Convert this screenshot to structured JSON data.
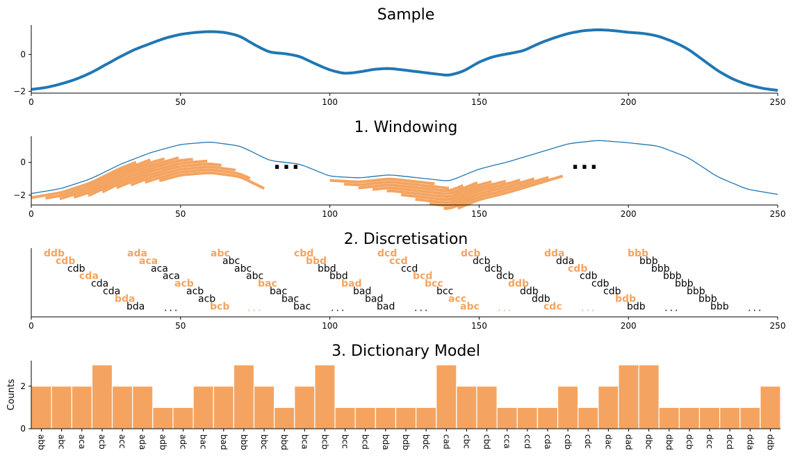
{
  "colors": {
    "sample_line": "#1f77b4",
    "accent": "#f4a460",
    "axis": "#000000",
    "text": "#000000",
    "bar_edge": "#ffffff"
  },
  "chart_data": [
    {
      "type": "line",
      "title": "Sample",
      "xlim": [
        0,
        250
      ],
      "ylim": [
        -2.1,
        1.6
      ],
      "xticks": [
        "0",
        "50",
        "100",
        "150",
        "200",
        "250"
      ],
      "yticks": [
        "−2",
        "0"
      ],
      "series": [
        {
          "x": [
            0,
            5,
            10,
            15,
            20,
            25,
            30,
            35,
            40,
            45,
            50,
            55,
            60,
            65,
            70,
            75,
            80,
            85,
            90,
            95,
            100,
            105,
            110,
            115,
            120,
            125,
            130,
            135,
            140,
            145,
            150,
            155,
            160,
            165,
            170,
            175,
            180,
            185,
            190,
            195,
            200,
            205,
            210,
            215,
            220,
            225,
            230,
            235,
            240,
            245,
            250
          ],
          "y": [
            -1.9,
            -1.8,
            -1.6,
            -1.35,
            -1.0,
            -0.55,
            -0.1,
            0.3,
            0.6,
            0.9,
            1.1,
            1.2,
            1.25,
            1.2,
            1.0,
            0.5,
            0.1,
            0.05,
            -0.1,
            -0.5,
            -0.85,
            -1.05,
            -0.95,
            -0.8,
            -0.75,
            -0.85,
            -0.95,
            -1.05,
            -1.15,
            -0.9,
            -0.4,
            -0.1,
            0.05,
            0.2,
            0.6,
            0.9,
            1.15,
            1.3,
            1.35,
            1.3,
            1.2,
            1.15,
            1.0,
            0.7,
            0.3,
            -0.3,
            -0.9,
            -1.35,
            -1.65,
            -1.85,
            -1.95
          ]
        }
      ]
    },
    {
      "type": "line",
      "title": "1. Windowing",
      "xlim": [
        0,
        250
      ],
      "ylim": [
        -2.6,
        1.6
      ],
      "xticks": [
        "0",
        "50",
        "100",
        "150",
        "200",
        "250"
      ],
      "yticks": [
        "−2",
        "0"
      ],
      "series": [
        {
          "x": [
            0,
            10,
            20,
            30,
            40,
            50,
            60,
            70,
            80,
            90,
            100,
            110,
            120,
            130,
            140,
            150,
            160,
            170,
            180,
            190,
            200,
            210,
            220,
            230,
            240,
            250
          ],
          "y": [
            -1.9,
            -1.6,
            -1.0,
            -0.1,
            0.6,
            1.1,
            1.25,
            1.0,
            0.1,
            -0.1,
            -0.85,
            -0.95,
            -0.75,
            -0.95,
            -1.15,
            -0.4,
            0.05,
            0.6,
            1.15,
            1.35,
            1.2,
            1.0,
            0.3,
            -0.9,
            -1.65,
            -1.95
          ]
        }
      ],
      "window_groups": [
        {
          "start": 0,
          "end": 78,
          "windows": 10
        },
        {
          "start": 100,
          "end": 178,
          "windows": 10
        }
      ],
      "annotations": [
        "...",
        "..."
      ]
    },
    {
      "type": "table",
      "title": "2. Discretisation",
      "xlim": [
        0,
        250
      ],
      "xticks": [
        "0",
        "50",
        "100",
        "150",
        "200",
        "250"
      ],
      "columns": [
        {
          "words": [
            "ddb",
            "cdb",
            "cdb",
            "cda",
            "cda",
            "cda",
            "bda",
            "bda"
          ],
          "highlight": [
            true,
            true,
            false,
            true,
            false,
            false,
            true,
            false
          ],
          "ellipsis": "...",
          "ellipsis_highlight": false
        },
        {
          "words": [
            "ada",
            "aca",
            "aca",
            "aca",
            "acb",
            "acb",
            "acb",
            "bcb"
          ],
          "highlight": [
            true,
            true,
            false,
            false,
            true,
            false,
            false,
            true
          ],
          "ellipsis": "...",
          "ellipsis_highlight": true
        },
        {
          "words": [
            "abc",
            "abc",
            "abc",
            "abc",
            "bac",
            "bac",
            "bac",
            "bac"
          ],
          "highlight": [
            true,
            false,
            false,
            false,
            true,
            false,
            false,
            false
          ],
          "ellipsis": "...",
          "ellipsis_highlight": false
        },
        {
          "words": [
            "cbd",
            "bbd",
            "bbd",
            "bbd",
            "bad",
            "bad",
            "bad",
            "bad"
          ],
          "highlight": [
            true,
            true,
            false,
            false,
            true,
            false,
            false,
            false
          ],
          "ellipsis": "...",
          "ellipsis_highlight": false
        },
        {
          "words": [
            "dcd",
            "ccd",
            "ccd",
            "bcd",
            "bcc",
            "bcc",
            "acc",
            "abc"
          ],
          "highlight": [
            true,
            true,
            false,
            true,
            true,
            false,
            true,
            true
          ],
          "ellipsis": "...",
          "ellipsis_highlight": true
        },
        {
          "words": [
            "dcb",
            "dcb",
            "dcb",
            "dcb",
            "ddb",
            "ddb",
            "ddb",
            "cdc"
          ],
          "highlight": [
            true,
            false,
            false,
            false,
            true,
            false,
            false,
            true
          ],
          "ellipsis": "...",
          "ellipsis_highlight": true
        },
        {
          "words": [
            "dda",
            "dda",
            "cdb",
            "cdb",
            "cdb",
            "cdb",
            "bdb",
            "bdb"
          ],
          "highlight": [
            true,
            false,
            true,
            false,
            false,
            false,
            true,
            false
          ],
          "ellipsis": "...",
          "ellipsis_highlight": false
        },
        {
          "words": [
            "bbb",
            "bbb",
            "bbb",
            "bbb",
            "bbb",
            "bbb",
            "bbb",
            "bbb"
          ],
          "highlight": [
            true,
            false,
            false,
            false,
            false,
            false,
            false,
            false
          ],
          "ellipsis": "...",
          "ellipsis_highlight": false
        }
      ]
    },
    {
      "type": "bar",
      "title": "3. Dictionary Model",
      "ylabel": "Counts",
      "ylim": [
        0,
        3.2
      ],
      "yticks": [
        "0",
        "2"
      ],
      "categories": [
        "abb",
        "abc",
        "aca",
        "acb",
        "acc",
        "ada",
        "adb",
        "adc",
        "bac",
        "bad",
        "bbb",
        "bbc",
        "bbd",
        "bca",
        "bcb",
        "bcc",
        "bcd",
        "bda",
        "bdb",
        "bdc",
        "cad",
        "cbc",
        "cbd",
        "cca",
        "ccd",
        "cda",
        "cdb",
        "cdc",
        "dac",
        "dad",
        "dbc",
        "dbd",
        "dcb",
        "dcc",
        "dcd",
        "dda",
        "ddb"
      ],
      "values": [
        2,
        2,
        2,
        3,
        2,
        2,
        1,
        1,
        2,
        2,
        3,
        2,
        1,
        2,
        3,
        1,
        1,
        1,
        1,
        1,
        3,
        2,
        2,
        1,
        1,
        1,
        2,
        1,
        2,
        3,
        3,
        1,
        1,
        1,
        1,
        1,
        2
      ]
    }
  ]
}
